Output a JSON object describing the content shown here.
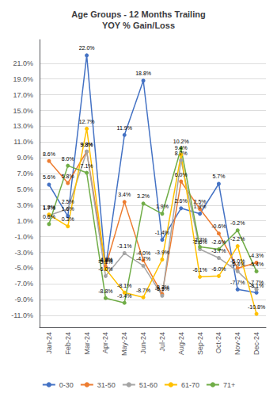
{
  "chart_data": {
    "type": "line",
    "title": "Age Groups - 12 Months Trailing\nYOY % Gain/Loss",
    "categories": [
      "Jan-24",
      "Feb-24",
      "Mar-24",
      "Apr-24",
      "May-24",
      "Jun-24",
      "Jul-24",
      "Aug-24",
      "Sep-24",
      "Oct-24",
      "Nov-24",
      "Dec-24"
    ],
    "series": [
      {
        "name": "0-30",
        "color": "#4472C4",
        "marker": "circle",
        "line_style": "solid",
        "values": [
          5.6,
          1.6,
          22.0,
          -4.9,
          11.9,
          18.8,
          -1.4,
          2.6,
          1.9,
          5.7,
          -7.7,
          -8.1
        ],
        "value_labels": [
          "5.6%",
          "1.6%",
          "22.0%",
          "-4.9%",
          "11.9%",
          "18.8%",
          "-1.4%",
          "2.6%",
          "1.9%",
          "5.7%",
          "-7.7%",
          "-8.1%"
        ]
      },
      {
        "name": "31-50",
        "color": "#ED7D31",
        "marker": "circle",
        "line_style": "solid",
        "values": [
          8.6,
          5.8,
          9.8,
          -4.8,
          3.4,
          -4.0,
          -8.3,
          6.0,
          2.5,
          -0.6,
          -5.0,
          -4.3
        ],
        "value_labels": [
          "8.6%",
          "5.8%",
          "9.8%",
          "-4.8%",
          "3.4%",
          "-4.0%",
          "-8.3%",
          "6.0%",
          "2.5%",
          "-0.6%",
          "-5.0%",
          "-4.3%"
        ]
      },
      {
        "name": "51-60",
        "color": "#A5A5A5",
        "marker": "circle",
        "line_style": "solid",
        "values": [
          1.7,
          2.5,
          9.8,
          -6.0,
          -3.1,
          -4.7,
          -8.5,
          8.7,
          -2.6,
          -3.7,
          -5.4,
          -7.7
        ],
        "value_labels": [
          "1.7%",
          "2.5%",
          "9.8%",
          "-6.0%",
          "-3.1%",
          "-4.7%",
          "-8.5%",
          "8.7%",
          "-2.6%",
          "-3.7%",
          "-5.4%",
          "-7.7%"
        ]
      },
      {
        "name": "61-70",
        "color": "#FFC000",
        "marker": "circle",
        "line_style": "solid",
        "values": [
          1.8,
          0.3,
          12.7,
          -5.1,
          -8.1,
          -8.7,
          -3.9,
          9.4,
          -6.1,
          -6.0,
          -2.2,
          -10.8
        ],
        "value_labels": [
          "1.8%",
          "0.3%",
          "12.7%",
          "-5.1%",
          "-8.1%",
          "-8.7%",
          "-3.9%",
          "9.4%",
          "-6.1%",
          "-6.0%",
          "-2.2%",
          "-10.8%"
        ]
      },
      {
        "name": "71+",
        "color": "#70AD47",
        "marker": "circle",
        "line_style": "solid",
        "values": [
          0.6,
          8.0,
          7.1,
          -8.8,
          -9.4,
          3.2,
          1.9,
          10.2,
          -2.3,
          -2.6,
          -0.2,
          -5.4
        ],
        "value_labels": [
          "0.6%",
          "8.0%",
          "7.1%",
          "-8.8%",
          "-9.4%",
          "3.2%",
          "1.9%",
          "10.2%",
          "-2.3%",
          "-2.6%",
          "-0.2%",
          "-5.4%"
        ]
      }
    ],
    "ylim": [
      -12.5,
      24.0
    ],
    "yticks": [
      {
        "value": -11.0,
        "label": "-11.0%"
      },
      {
        "value": -9.0,
        "label": "-9.0%"
      },
      {
        "value": -7.0,
        "label": "-7.0%"
      },
      {
        "value": -5.0,
        "label": "-5.0%"
      },
      {
        "value": -3.0,
        "label": "-3.0%"
      },
      {
        "value": -1.0,
        "label": "-1.0%"
      },
      {
        "value": 1.0,
        "label": "1.0%"
      },
      {
        "value": 3.0,
        "label": "3.0%"
      },
      {
        "value": 5.0,
        "label": "5.0%"
      },
      {
        "value": 7.0,
        "label": "7.0%"
      },
      {
        "value": 9.0,
        "label": "9.0%"
      },
      {
        "value": 11.0,
        "label": "11.0%"
      },
      {
        "value": 13.0,
        "label": "13.0%"
      },
      {
        "value": 15.0,
        "label": "15.0%"
      },
      {
        "value": 17.0,
        "label": "17.0%"
      },
      {
        "value": 19.0,
        "label": "19.0%"
      },
      {
        "value": 21.0,
        "label": "21.0%"
      }
    ],
    "grid": true,
    "legend": "bottom",
    "data_labels": true
  }
}
